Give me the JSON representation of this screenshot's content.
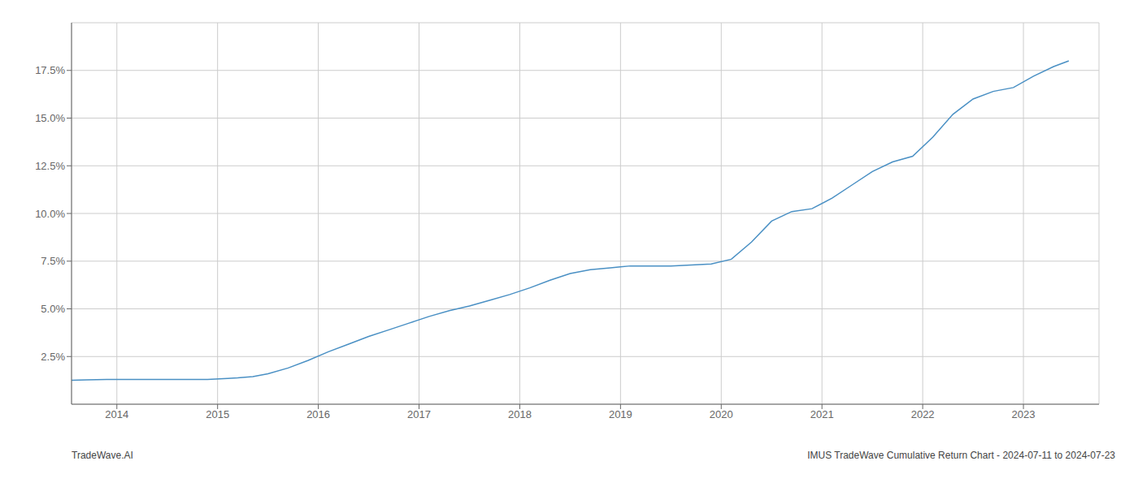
{
  "chart_data": {
    "type": "line",
    "annotations": [
      "TradeWave.AI",
      "IMUS TradeWave Cumulative Return Chart - 2024-07-11 to 2024-07-23"
    ],
    "color": "#4a90c4",
    "grid": true,
    "x": [
      2013.55,
      2013.7,
      2013.9,
      2014.1,
      2014.3,
      2014.5,
      2014.7,
      2014.9,
      2015.1,
      2015.2,
      2015.35,
      2015.5,
      2015.7,
      2015.9,
      2016.1,
      2016.3,
      2016.5,
      2016.7,
      2016.9,
      2017.1,
      2017.3,
      2017.5,
      2017.7,
      2017.9,
      2018.1,
      2018.3,
      2018.5,
      2018.7,
      2018.9,
      2019.0,
      2019.1,
      2019.3,
      2019.5,
      2019.7,
      2019.9,
      2020.1,
      2020.3,
      2020.5,
      2020.7,
      2020.9,
      2021.1,
      2021.3,
      2021.5,
      2021.7,
      2021.9,
      2022.1,
      2022.3,
      2022.5,
      2022.7,
      2022.9,
      2023.1,
      2023.3,
      2023.45
    ],
    "values": [
      1.25,
      1.28,
      1.3,
      1.3,
      1.3,
      1.3,
      1.3,
      1.3,
      1.35,
      1.38,
      1.45,
      1.6,
      1.9,
      2.3,
      2.75,
      3.15,
      3.55,
      3.9,
      4.25,
      4.6,
      4.9,
      5.15,
      5.45,
      5.75,
      6.1,
      6.5,
      6.85,
      7.05,
      7.15,
      7.2,
      7.25,
      7.25,
      7.25,
      7.3,
      7.35,
      7.6,
      8.5,
      9.6,
      10.1,
      10.25,
      10.8,
      11.5,
      12.2,
      12.7,
      13.0,
      14.0,
      15.2,
      16.0,
      16.4,
      16.6,
      17.2,
      17.7,
      18.0
    ],
    "xlim": [
      2013.55,
      2023.75
    ],
    "xticks": [
      2014,
      2015,
      2016,
      2017,
      2018,
      2019,
      2020,
      2021,
      2022,
      2023
    ],
    "ylim": [
      0.0,
      20.0
    ],
    "yticks": [
      {
        "value": 2.5,
        "label": "2.5%"
      },
      {
        "value": 5.0,
        "label": "5.0%"
      },
      {
        "value": 7.5,
        "label": "7.5%"
      },
      {
        "value": 10.0,
        "label": "10.0%"
      },
      {
        "value": 12.5,
        "label": "12.5%"
      },
      {
        "value": 15.0,
        "label": "15.0%"
      },
      {
        "value": 17.5,
        "label": "17.5%"
      }
    ]
  }
}
